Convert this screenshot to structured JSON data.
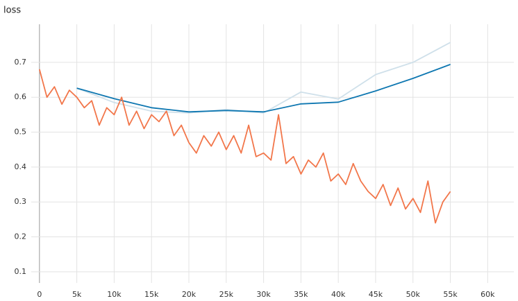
{
  "chart_data": {
    "type": "line",
    "title": "loss",
    "xlim": [
      -1100,
      63500
    ],
    "ylim": [
      0.068,
      0.809
    ],
    "xticks": [
      0,
      {
        "value": 5000,
        "label": "5k"
      },
      {
        "value": 10000,
        "label": "10k"
      },
      {
        "value": 15000,
        "label": "15k"
      },
      {
        "value": 20000,
        "label": "20k"
      },
      {
        "value": 25000,
        "label": "25k"
      },
      {
        "value": 30000,
        "label": "30k"
      },
      {
        "value": 35000,
        "label": "35k"
      },
      {
        "value": 40000,
        "label": "40k"
      },
      {
        "value": 45000,
        "label": "45k"
      },
      {
        "value": 50000,
        "label": "50k"
      },
      {
        "value": 55000,
        "label": "55k"
      },
      {
        "value": 60000,
        "label": "60k"
      }
    ],
    "yticks": [
      0.1,
      0.2,
      0.3,
      0.4,
      0.5,
      0.6,
      0.7
    ],
    "grid": true,
    "series": [
      {
        "color": "#cfe0ea",
        "x": [
          5000,
          10000,
          15000,
          20000,
          25000,
          30000,
          35000,
          40000,
          45000,
          50000,
          55000
        ],
        "values": [
          0.626,
          0.585,
          0.56,
          0.555,
          0.565,
          0.555,
          0.615,
          0.595,
          0.665,
          0.7,
          0.757
        ]
      },
      {
        "color": "#0e77b1",
        "x": [
          5000,
          10000,
          15000,
          20000,
          25000,
          30000,
          35000,
          40000,
          45000,
          50000,
          55000
        ],
        "values": [
          0.626,
          0.596,
          0.57,
          0.558,
          0.562,
          0.558,
          0.581,
          0.586,
          0.618,
          0.654,
          0.694
        ]
      },
      {
        "color": "#f2764a",
        "x": [
          0,
          1000,
          2000,
          3000,
          4000,
          5000,
          6000,
          7000,
          8000,
          9000,
          10000,
          11000,
          12000,
          13000,
          14000,
          15000,
          16000,
          17000,
          18000,
          19000,
          20000,
          21000,
          22000,
          23000,
          24000,
          25000,
          26000,
          27000,
          28000,
          29000,
          30000,
          31000,
          32000,
          33000,
          34000,
          35000,
          36000,
          37000,
          38000,
          39000,
          40000,
          41000,
          42000,
          43000,
          44000,
          45000,
          46000,
          47000,
          48000,
          49000,
          50000,
          51000,
          52000,
          53000,
          54000,
          55000
        ],
        "values": [
          0.68,
          0.6,
          0.63,
          0.58,
          0.62,
          0.6,
          0.57,
          0.59,
          0.52,
          0.57,
          0.55,
          0.6,
          0.52,
          0.56,
          0.51,
          0.55,
          0.53,
          0.56,
          0.49,
          0.52,
          0.47,
          0.44,
          0.49,
          0.46,
          0.5,
          0.45,
          0.49,
          0.44,
          0.52,
          0.43,
          0.44,
          0.42,
          0.55,
          0.41,
          0.43,
          0.38,
          0.42,
          0.4,
          0.44,
          0.36,
          0.38,
          0.35,
          0.41,
          0.36,
          0.33,
          0.31,
          0.35,
          0.29,
          0.34,
          0.28,
          0.31,
          0.27,
          0.36,
          0.24,
          0.3,
          0.33
        ]
      }
    ]
  }
}
